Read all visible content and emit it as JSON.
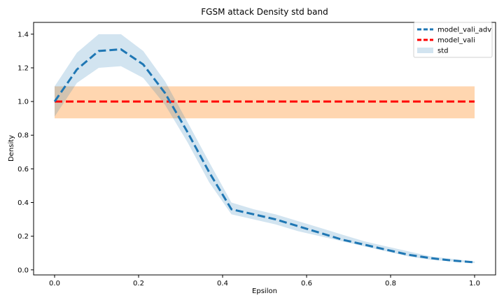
{
  "chart_data": {
    "type": "line",
    "title": "FGSM attack Density std band",
    "xlabel": "Epsilon",
    "ylabel": "Density",
    "xlim": [
      -0.05,
      1.05
    ],
    "ylim": [
      -0.03,
      1.47
    ],
    "xticks": [
      "0.0",
      "0.2",
      "0.4",
      "0.6",
      "0.8",
      "1.0"
    ],
    "yticks": [
      "0.0",
      "0.2",
      "0.4",
      "0.6",
      "0.8",
      "1.0",
      "1.2",
      "1.4"
    ],
    "x": [
      0.0,
      0.053,
      0.105,
      0.158,
      0.211,
      0.263,
      0.316,
      0.368,
      0.421,
      0.474,
      0.526,
      0.579,
      0.632,
      0.684,
      0.737,
      0.789,
      0.842,
      0.895,
      0.947,
      1.0
    ],
    "series": [
      {
        "name": "model_vali_adv",
        "color": "#1f77b4",
        "style": "dashed",
        "values": [
          1.0,
          1.19,
          1.3,
          1.31,
          1.22,
          1.05,
          0.82,
          0.58,
          0.36,
          0.33,
          0.3,
          0.26,
          0.22,
          0.18,
          0.15,
          0.12,
          0.09,
          0.07,
          0.055,
          0.045
        ],
        "std_lower": [
          0.91,
          1.11,
          1.2,
          1.21,
          1.14,
          0.98,
          0.76,
          0.52,
          0.33,
          0.3,
          0.27,
          0.23,
          0.2,
          0.17,
          0.14,
          0.11,
          0.08,
          0.06,
          0.05,
          0.04
        ],
        "std_upper": [
          1.09,
          1.29,
          1.4,
          1.4,
          1.3,
          1.12,
          0.88,
          0.64,
          0.4,
          0.36,
          0.33,
          0.29,
          0.25,
          0.21,
          0.17,
          0.14,
          0.11,
          0.08,
          0.065,
          0.05
        ]
      },
      {
        "name": "model_vali",
        "color": "#ff0000",
        "style": "dashed",
        "values": [
          1.0,
          1.0,
          1.0,
          1.0,
          1.0,
          1.0,
          1.0,
          1.0,
          1.0,
          1.0,
          1.0,
          1.0,
          1.0,
          1.0,
          1.0,
          1.0,
          1.0,
          1.0,
          1.0,
          1.0
        ],
        "std_lower": 0.9,
        "std_upper": 1.09
      }
    ],
    "band_colors": {
      "model_vali_adv": "#1f77b4",
      "model_vali": "#ffa54f"
    },
    "legend": {
      "position": "top-right",
      "entries": [
        "model_vali_adv",
        "model_vali",
        "std"
      ]
    },
    "grid": false
  }
}
